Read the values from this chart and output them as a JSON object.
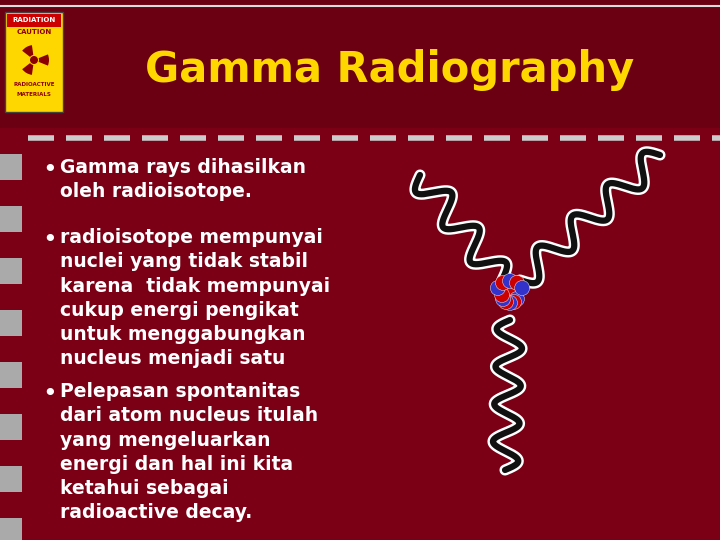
{
  "bg_color": "#7B0015",
  "header_bg": "#6A0012",
  "title": "Gamma Radiography",
  "title_color": "#FFD700",
  "title_fontsize": 30,
  "dashes_color": "#CCCCCC",
  "text_color": "#FFFFFF",
  "bullet_fontsize": 13.5,
  "bullets": [
    "Gamma rays dihasilkan\noleh radioisotope.",
    "radioisotope mempunyai\nnuclei yang tidak stabil\nkarena  tidak mempunyai\ncukup energi pengikat\nuntuk menggabungkan\nnucleus menjadi satu",
    "Pelepasan spontanitas\ndari atom nucleus itulah\nyang mengeluarkan\nenergi dan hal ini kita\nketahui sebagai\nradioactive decay."
  ],
  "stripe_dark": "#7B0015",
  "stripe_light": "#AAAAAA",
  "top_line_color": "#DDDDDD",
  "wave_outline": "#FFFFFF",
  "wave_fill": "#111111"
}
